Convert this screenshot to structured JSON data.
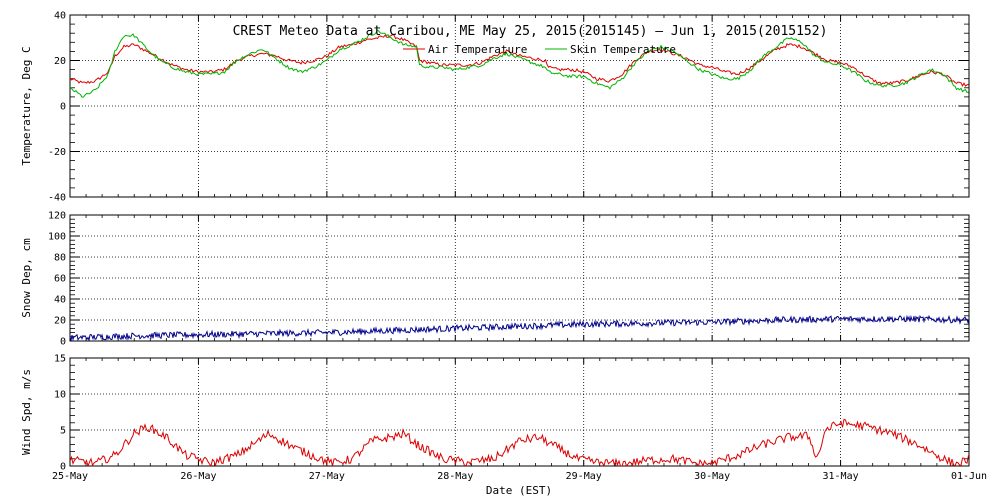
{
  "chart_data": {
    "type": "line",
    "title": "CREST Meteo Data at Caribou, ME   May 25, 2015(2015145) — Jun  1, 2015(2015152)",
    "xlabel": "Date (EST)",
    "x_ticks": [
      "25-May",
      "26-May",
      "27-May",
      "28-May",
      "29-May",
      "30-May",
      "31-May",
      "01-Jun"
    ],
    "x_range_days": [
      0,
      7
    ],
    "grid": true,
    "panels": [
      {
        "id": "temperature",
        "ylabel": "Temperature, Deg C",
        "ylim": [
          -40,
          40
        ],
        "yticks": [
          -40,
          -20,
          0,
          20,
          40
        ],
        "legend_placement": "top-center",
        "series": [
          {
            "name": "Air Temperature",
            "color": "#e00000",
            "x": [
              0,
              0.1,
              0.2,
              0.3,
              0.35,
              0.42,
              0.5,
              0.6,
              0.7,
              0.8,
              0.9,
              1.0,
              1.1,
              1.2,
              1.3,
              1.4,
              1.5,
              1.6,
              1.7,
              1.8,
              1.9,
              2.0,
              2.1,
              2.2,
              2.3,
              2.4,
              2.5,
              2.6,
              2.7,
              2.72,
              2.8,
              2.9,
              3.0,
              3.1,
              3.2,
              3.3,
              3.4,
              3.5,
              3.6,
              3.7,
              3.72,
              3.8,
              3.9,
              4.0,
              4.1,
              4.2,
              4.3,
              4.4,
              4.5,
              4.6,
              4.7,
              4.8,
              4.9,
              5.0,
              5.1,
              5.2,
              5.3,
              5.4,
              5.5,
              5.6,
              5.7,
              5.8,
              5.9,
              6.0,
              6.1,
              6.2,
              6.3,
              6.4,
              6.5,
              6.6,
              6.7,
              6.8,
              6.9,
              7.0
            ],
            "y": [
              12,
              10,
              11,
              15,
              22,
              26,
              27,
              24,
              21,
              18,
              16,
              15,
              15,
              16,
              20,
              22,
              23,
              22,
              20,
              19,
              20,
              22,
              26,
              27,
              29,
              30,
              31,
              29,
              26,
              20,
              19,
              18,
              18,
              18,
              19,
              22,
              24,
              22,
              21,
              20,
              17,
              16,
              16,
              15,
              12,
              11,
              14,
              20,
              24,
              25,
              23,
              21,
              18,
              17,
              15,
              14,
              17,
              21,
              25,
              27,
              26,
              23,
              20,
              19,
              17,
              13,
              10,
              10,
              11,
              13,
              15,
              14,
              10,
              9
            ]
          },
          {
            "name": "Skin Temperature",
            "color": "#00b400",
            "x": [
              0,
              0.1,
              0.2,
              0.3,
              0.35,
              0.42,
              0.5,
              0.6,
              0.7,
              0.8,
              0.9,
              1.0,
              1.1,
              1.2,
              1.3,
              1.4,
              1.5,
              1.6,
              1.7,
              1.8,
              1.9,
              2.0,
              2.1,
              2.2,
              2.3,
              2.4,
              2.5,
              2.6,
              2.7,
              2.72,
              2.8,
              2.9,
              3.0,
              3.1,
              3.2,
              3.3,
              3.4,
              3.5,
              3.6,
              3.7,
              3.72,
              3.8,
              3.9,
              4.0,
              4.1,
              4.2,
              4.3,
              4.4,
              4.5,
              4.6,
              4.7,
              4.8,
              4.9,
              5.0,
              5.1,
              5.2,
              5.3,
              5.4,
              5.5,
              5.6,
              5.7,
              5.8,
              5.9,
              6.0,
              6.1,
              6.2,
              6.3,
              6.4,
              6.5,
              6.6,
              6.7,
              6.8,
              6.9,
              7.0
            ],
            "y": [
              8,
              4,
              7,
              14,
              24,
              31,
              31,
              25,
              20,
              17,
              15,
              14,
              14,
              15,
              20,
              23,
              25,
              21,
              17,
              15,
              17,
              20,
              25,
              27,
              30,
              33,
              30,
              27,
              26,
              18,
              17,
              17,
              16,
              17,
              18,
              21,
              23,
              21,
              19,
              17,
              15,
              14,
              13,
              13,
              10,
              8,
              12,
              19,
              24,
              26,
              24,
              20,
              16,
              14,
              12,
              12,
              16,
              22,
              26,
              30,
              28,
              22,
              19,
              18,
              15,
              11,
              9,
              9,
              10,
              13,
              16,
              14,
              8,
              6
            ]
          }
        ]
      },
      {
        "id": "snow",
        "ylabel": "Snow Dep, cm",
        "ylim": [
          0,
          120
        ],
        "yticks": [
          0,
          20,
          40,
          60,
          80,
          100,
          120
        ],
        "series": [
          {
            "name": "",
            "color": "#00008c",
            "x": [
              0,
              0.5,
              1,
              1.5,
              2,
              2.5,
              3,
              3.5,
              4,
              4.5,
              5,
              5.5,
              6,
              6.5,
              7
            ],
            "y": [
              3,
              5,
              6,
              7,
              8,
              10,
              12,
              14,
              16,
              17,
              18,
              20,
              21,
              21,
              20
            ],
            "noise_cm": 3
          }
        ]
      },
      {
        "id": "wind",
        "ylabel": "Wind Spd, m/s",
        "ylim": [
          0,
          15
        ],
        "yticks": [
          0,
          5,
          10,
          15
        ],
        "series": [
          {
            "name": "",
            "color": "#dc0000",
            "x": [
              0,
              0.2,
              0.35,
              0.5,
              0.6,
              0.75,
              0.9,
              1.1,
              1.3,
              1.55,
              1.75,
              1.95,
              2.05,
              2.2,
              2.35,
              2.5,
              2.6,
              2.7,
              2.9,
              3.1,
              3.3,
              3.5,
              3.65,
              3.8,
              3.95,
              4.1,
              4.3,
              4.5,
              4.7,
              4.9,
              5.0,
              5.2,
              5.4,
              5.6,
              5.75,
              5.82,
              5.88,
              6.0,
              6.2,
              6.4,
              6.6,
              6.8,
              6.9,
              7.0
            ],
            "y": [
              0.8,
              0.4,
              1.5,
              4.5,
              5.5,
              4,
              1.5,
              0.4,
              1.5,
              4.5,
              2.5,
              1,
              0.4,
              1,
              3.5,
              4,
              4.5,
              3,
              1,
              0.5,
              1,
              3.5,
              4,
              2.5,
              1,
              0.5,
              0.3,
              0.8,
              1,
              0.3,
              0.4,
              1.5,
              3,
              4,
              4.2,
              1,
              5,
              6,
              5.5,
              4.5,
              3,
              1,
              0.2,
              1
            ]
          }
        ]
      }
    ]
  }
}
